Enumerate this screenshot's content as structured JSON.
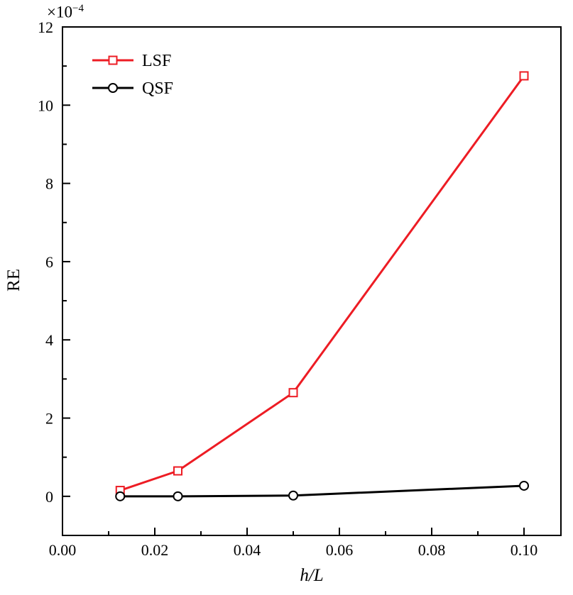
{
  "chart_data": {
    "type": "line",
    "title": "",
    "xlabel": "h/L",
    "ylabel": "RE",
    "multiplier": {
      "base": "×10",
      "exp": "−4"
    },
    "xlim": [
      0,
      0.108
    ],
    "ylim": [
      -1,
      12
    ],
    "x_major_ticks": [
      0.0,
      0.02,
      0.04,
      0.06,
      0.08,
      0.1
    ],
    "x_tick_labels": [
      "0.00",
      "0.02",
      "0.04",
      "0.06",
      "0.08",
      "0.10"
    ],
    "x_minor_step": 0.01,
    "y_major_ticks": [
      0,
      2,
      4,
      6,
      8,
      10,
      12
    ],
    "y_tick_labels": [
      "0",
      "2",
      "4",
      "6",
      "8",
      "10",
      "12"
    ],
    "y_minor_step": 1,
    "grid": false,
    "legend_position": "top-left",
    "series": [
      {
        "name": "LSF",
        "color": "#ed1c24",
        "marker": "square",
        "x": [
          0.0125,
          0.025,
          0.05,
          0.1
        ],
        "y": [
          0.15,
          0.65,
          2.65,
          10.75
        ]
      },
      {
        "name": "QSF",
        "color": "#000000",
        "marker": "circle",
        "x": [
          0.0125,
          0.025,
          0.05,
          0.1
        ],
        "y": [
          0.0,
          0.0,
          0.02,
          0.27
        ]
      }
    ]
  }
}
